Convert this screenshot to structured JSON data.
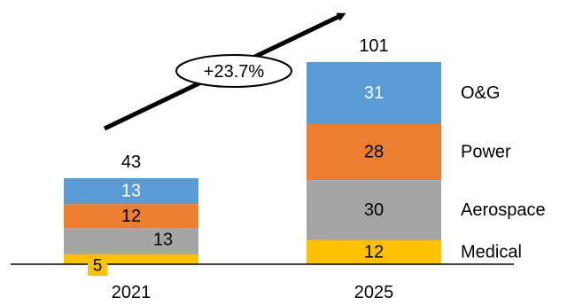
{
  "chart_data": {
    "type": "bar",
    "stacked": true,
    "categories": [
      "2021",
      "2025"
    ],
    "totals": [
      43,
      101
    ],
    "series": [
      {
        "name": "Medical",
        "values": [
          5,
          12
        ],
        "color": "#FFC000",
        "label_color": "#000000"
      },
      {
        "name": "Aerospace",
        "values": [
          13,
          30
        ],
        "color": "#A5A5A5",
        "label_color": "#000000"
      },
      {
        "name": "Power",
        "values": [
          12,
          28
        ],
        "color": "#ED7D31",
        "label_color": "#000000"
      },
      {
        "name": "O&G",
        "values": [
          13,
          31
        ],
        "color": "#5B9BD5",
        "label_color": "#FFFFFF"
      }
    ],
    "growth_annotation": "+23.7%",
    "legend_placement": "right, beside 2025 bar",
    "grid": false,
    "ylim": [
      0,
      101
    ]
  }
}
